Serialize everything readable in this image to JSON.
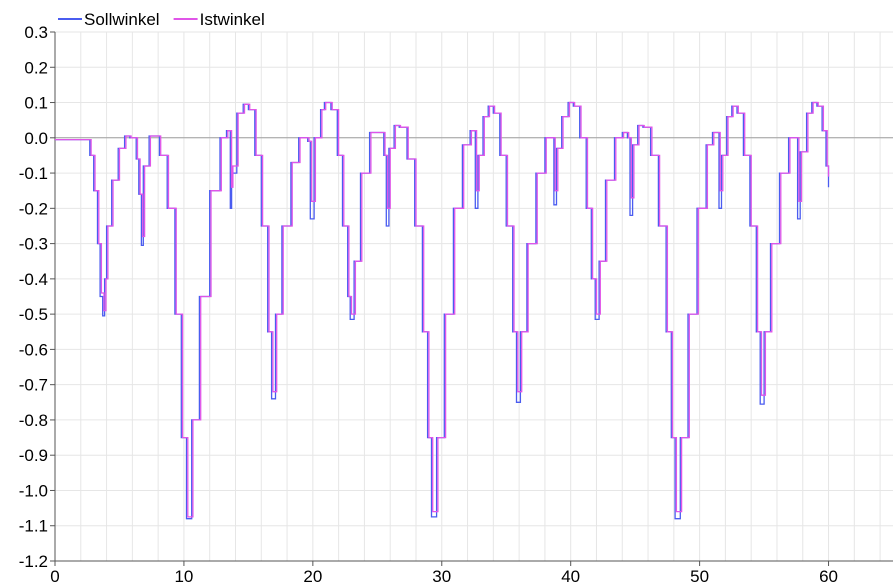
{
  "chart_data": {
    "type": "line",
    "title": "",
    "xlabel": "",
    "ylabel": "",
    "xlim": [
      0,
      65
    ],
    "ylim": [
      -1.2,
      0.3
    ],
    "x_ticks": [
      0,
      10,
      20,
      30,
      40,
      50,
      60
    ],
    "y_ticks": [
      0.3,
      0.2,
      0.1,
      0.0,
      -0.1,
      -0.2,
      -0.3,
      -0.4,
      -0.5,
      -0.6,
      -0.7,
      -0.8,
      -0.9,
      -1.0,
      -1.1,
      -1.2
    ],
    "x_tick_labels": [
      "0",
      "10",
      "20",
      "30",
      "40",
      "50",
      "60"
    ],
    "y_tick_labels": [
      "0.3",
      "0.2",
      "0.1",
      "0.0",
      "-0.1",
      "-0.2",
      "-0.3",
      "-0.4",
      "-0.5",
      "-0.6",
      "-0.7",
      "-0.8",
      "-0.9",
      "-1.0",
      "-1.1",
      "-1.2"
    ],
    "grid": true,
    "legend_position": "top-left",
    "series": [
      {
        "name": "Sollwinkel",
        "color": "#4a5cf0",
        "points": [
          [
            0,
            -0.005
          ],
          [
            2.3,
            -0.005
          ],
          [
            2.7,
            -0.05
          ],
          [
            3.0,
            -0.15
          ],
          [
            3.3,
            -0.3
          ],
          [
            3.5,
            -0.45
          ],
          [
            3.7,
            -0.505
          ],
          [
            3.85,
            -0.4
          ],
          [
            4.0,
            -0.25
          ],
          [
            4.4,
            -0.12
          ],
          [
            4.9,
            -0.03
          ],
          [
            5.4,
            0.005
          ],
          [
            5.8,
            0.0
          ],
          [
            6.3,
            -0.06
          ],
          [
            6.5,
            -0.16
          ],
          [
            6.7,
            -0.305
          ],
          [
            6.85,
            -0.08
          ],
          [
            7.3,
            0.005
          ],
          [
            7.7,
            0.005
          ],
          [
            8.1,
            -0.05
          ],
          [
            8.7,
            -0.2
          ],
          [
            9.3,
            -0.5
          ],
          [
            9.8,
            -0.85
          ],
          [
            10.2,
            -1.08
          ],
          [
            10.6,
            -0.8
          ],
          [
            11.2,
            -0.45
          ],
          [
            12.0,
            -0.15
          ],
          [
            12.8,
            0.0
          ],
          [
            13.3,
            0.02
          ],
          [
            13.5,
            0.02
          ],
          [
            13.6,
            -0.2
          ],
          [
            13.7,
            -0.1
          ],
          [
            14.1,
            0.07
          ],
          [
            14.6,
            0.095
          ],
          [
            15.0,
            0.08
          ],
          [
            15.5,
            -0.05
          ],
          [
            16.0,
            -0.25
          ],
          [
            16.5,
            -0.55
          ],
          [
            16.8,
            -0.74
          ],
          [
            17.1,
            -0.5
          ],
          [
            17.6,
            -0.25
          ],
          [
            18.3,
            -0.07
          ],
          [
            18.9,
            0.0
          ],
          [
            19.6,
            -0.01
          ],
          [
            19.8,
            -0.23
          ],
          [
            20.1,
            0.0
          ],
          [
            20.6,
            0.08
          ],
          [
            20.9,
            0.1
          ],
          [
            21.4,
            0.08
          ],
          [
            21.9,
            -0.05
          ],
          [
            22.3,
            -0.25
          ],
          [
            22.7,
            -0.45
          ],
          [
            22.9,
            -0.515
          ],
          [
            23.2,
            -0.35
          ],
          [
            23.7,
            -0.1
          ],
          [
            24.4,
            0.015
          ],
          [
            25.0,
            0.015
          ],
          [
            25.5,
            -0.05
          ],
          [
            25.7,
            -0.25
          ],
          [
            25.9,
            -0.03
          ],
          [
            26.3,
            0.035
          ],
          [
            26.7,
            0.03
          ],
          [
            27.3,
            -0.06
          ],
          [
            27.9,
            -0.25
          ],
          [
            28.5,
            -0.55
          ],
          [
            28.9,
            -0.85
          ],
          [
            29.2,
            -1.075
          ],
          [
            29.6,
            -0.85
          ],
          [
            30.2,
            -0.5
          ],
          [
            30.9,
            -0.2
          ],
          [
            31.6,
            -0.02
          ],
          [
            32.2,
            0.02
          ],
          [
            32.4,
            0.02
          ],
          [
            32.6,
            -0.2
          ],
          [
            32.8,
            -0.05
          ],
          [
            33.2,
            0.06
          ],
          [
            33.6,
            0.09
          ],
          [
            34.0,
            0.07
          ],
          [
            34.5,
            -0.05
          ],
          [
            35.0,
            -0.25
          ],
          [
            35.5,
            -0.55
          ],
          [
            35.8,
            -0.75
          ],
          [
            36.1,
            -0.55
          ],
          [
            36.6,
            -0.3
          ],
          [
            37.3,
            -0.1
          ],
          [
            38.0,
            0.0
          ],
          [
            38.5,
            0.0
          ],
          [
            38.7,
            -0.19
          ],
          [
            38.9,
            -0.03
          ],
          [
            39.3,
            0.06
          ],
          [
            39.8,
            0.1
          ],
          [
            40.2,
            0.09
          ],
          [
            40.7,
            0.0
          ],
          [
            41.2,
            -0.2
          ],
          [
            41.6,
            -0.4
          ],
          [
            41.9,
            -0.515
          ],
          [
            42.2,
            -0.35
          ],
          [
            42.7,
            -0.12
          ],
          [
            43.4,
            0.0
          ],
          [
            44.0,
            0.015
          ],
          [
            44.4,
            0.0
          ],
          [
            44.6,
            -0.22
          ],
          [
            44.8,
            -0.02
          ],
          [
            45.2,
            0.035
          ],
          [
            45.6,
            0.03
          ],
          [
            46.2,
            -0.05
          ],
          [
            46.8,
            -0.25
          ],
          [
            47.4,
            -0.55
          ],
          [
            47.8,
            -0.85
          ],
          [
            48.1,
            -1.08
          ],
          [
            48.5,
            -0.85
          ],
          [
            49.1,
            -0.5
          ],
          [
            49.8,
            -0.2
          ],
          [
            50.5,
            -0.02
          ],
          [
            51.0,
            0.015
          ],
          [
            51.3,
            0.015
          ],
          [
            51.5,
            -0.2
          ],
          [
            51.7,
            -0.05
          ],
          [
            52.1,
            0.06
          ],
          [
            52.5,
            0.09
          ],
          [
            52.9,
            0.07
          ],
          [
            53.4,
            -0.05
          ],
          [
            53.9,
            -0.25
          ],
          [
            54.4,
            -0.55
          ],
          [
            54.7,
            -0.755
          ],
          [
            55.0,
            -0.55
          ],
          [
            55.5,
            -0.3
          ],
          [
            56.2,
            -0.1
          ],
          [
            56.9,
            0.0
          ],
          [
            57.4,
            0.0
          ],
          [
            57.6,
            -0.23
          ],
          [
            57.8,
            -0.04
          ],
          [
            58.3,
            0.07
          ],
          [
            58.7,
            0.1
          ],
          [
            59.1,
            0.09
          ],
          [
            59.5,
            0.02
          ],
          [
            59.8,
            -0.08
          ],
          [
            60.0,
            -0.14
          ]
        ]
      },
      {
        "name": "Istwinkel",
        "color": "#e055e8",
        "points": [
          [
            0,
            -0.005
          ],
          [
            2.4,
            -0.005
          ],
          [
            2.8,
            -0.05
          ],
          [
            3.1,
            -0.15
          ],
          [
            3.4,
            -0.3
          ],
          [
            3.6,
            -0.44
          ],
          [
            3.8,
            -0.49
          ],
          [
            3.95,
            -0.4
          ],
          [
            4.1,
            -0.25
          ],
          [
            4.5,
            -0.12
          ],
          [
            5.0,
            -0.03
          ],
          [
            5.5,
            0.005
          ],
          [
            5.9,
            0.0
          ],
          [
            6.4,
            -0.06
          ],
          [
            6.6,
            -0.16
          ],
          [
            6.8,
            -0.28
          ],
          [
            6.95,
            -0.08
          ],
          [
            7.4,
            0.005
          ],
          [
            7.8,
            0.005
          ],
          [
            8.2,
            -0.05
          ],
          [
            8.8,
            -0.2
          ],
          [
            9.4,
            -0.5
          ],
          [
            9.9,
            -0.85
          ],
          [
            10.3,
            -1.075
          ],
          [
            10.7,
            -0.8
          ],
          [
            11.3,
            -0.45
          ],
          [
            12.1,
            -0.15
          ],
          [
            12.9,
            0.0
          ],
          [
            13.4,
            0.02
          ],
          [
            13.6,
            0.02
          ],
          [
            13.7,
            -0.14
          ],
          [
            13.8,
            -0.08
          ],
          [
            14.2,
            0.07
          ],
          [
            14.7,
            0.095
          ],
          [
            15.1,
            0.08
          ],
          [
            15.6,
            -0.05
          ],
          [
            16.1,
            -0.25
          ],
          [
            16.6,
            -0.55
          ],
          [
            16.9,
            -0.72
          ],
          [
            17.2,
            -0.5
          ],
          [
            17.7,
            -0.25
          ],
          [
            18.4,
            -0.07
          ],
          [
            19.0,
            0.0
          ],
          [
            19.7,
            -0.01
          ],
          [
            19.9,
            -0.18
          ],
          [
            20.2,
            0.0
          ],
          [
            20.7,
            0.08
          ],
          [
            21.0,
            0.1
          ],
          [
            21.5,
            0.08
          ],
          [
            22.0,
            -0.05
          ],
          [
            22.4,
            -0.25
          ],
          [
            22.8,
            -0.45
          ],
          [
            23.0,
            -0.5
          ],
          [
            23.3,
            -0.35
          ],
          [
            23.8,
            -0.1
          ],
          [
            24.5,
            0.015
          ],
          [
            25.1,
            0.015
          ],
          [
            25.6,
            -0.05
          ],
          [
            25.8,
            -0.2
          ],
          [
            26.0,
            -0.03
          ],
          [
            26.4,
            0.035
          ],
          [
            26.8,
            0.03
          ],
          [
            27.4,
            -0.06
          ],
          [
            28.0,
            -0.25
          ],
          [
            28.6,
            -0.55
          ],
          [
            29.0,
            -0.85
          ],
          [
            29.3,
            -1.06
          ],
          [
            29.7,
            -0.85
          ],
          [
            30.3,
            -0.5
          ],
          [
            31.0,
            -0.2
          ],
          [
            31.7,
            -0.02
          ],
          [
            32.3,
            0.02
          ],
          [
            32.5,
            0.02
          ],
          [
            32.7,
            -0.15
          ],
          [
            32.9,
            -0.05
          ],
          [
            33.3,
            0.06
          ],
          [
            33.7,
            0.09
          ],
          [
            34.1,
            0.07
          ],
          [
            34.6,
            -0.05
          ],
          [
            35.1,
            -0.25
          ],
          [
            35.6,
            -0.55
          ],
          [
            35.9,
            -0.72
          ],
          [
            36.2,
            -0.55
          ],
          [
            36.7,
            -0.3
          ],
          [
            37.4,
            -0.1
          ],
          [
            38.1,
            0.0
          ],
          [
            38.6,
            0.0
          ],
          [
            38.8,
            -0.15
          ],
          [
            39.0,
            -0.03
          ],
          [
            39.4,
            0.06
          ],
          [
            39.9,
            0.1
          ],
          [
            40.3,
            0.09
          ],
          [
            40.8,
            0.0
          ],
          [
            41.3,
            -0.2
          ],
          [
            41.7,
            -0.4
          ],
          [
            42.0,
            -0.5
          ],
          [
            42.3,
            -0.35
          ],
          [
            42.8,
            -0.12
          ],
          [
            43.5,
            0.0
          ],
          [
            44.1,
            0.015
          ],
          [
            44.5,
            0.0
          ],
          [
            44.7,
            -0.17
          ],
          [
            44.9,
            -0.02
          ],
          [
            45.3,
            0.035
          ],
          [
            45.7,
            0.03
          ],
          [
            46.3,
            -0.05
          ],
          [
            46.9,
            -0.25
          ],
          [
            47.5,
            -0.55
          ],
          [
            47.9,
            -0.85
          ],
          [
            48.2,
            -1.06
          ],
          [
            48.6,
            -0.85
          ],
          [
            49.2,
            -0.5
          ],
          [
            49.9,
            -0.2
          ],
          [
            50.6,
            -0.02
          ],
          [
            51.1,
            0.015
          ],
          [
            51.4,
            0.015
          ],
          [
            51.6,
            -0.15
          ],
          [
            51.8,
            -0.05
          ],
          [
            52.2,
            0.06
          ],
          [
            52.6,
            0.09
          ],
          [
            53.0,
            0.07
          ],
          [
            53.5,
            -0.05
          ],
          [
            54.0,
            -0.25
          ],
          [
            54.5,
            -0.55
          ],
          [
            54.8,
            -0.73
          ],
          [
            55.1,
            -0.55
          ],
          [
            55.6,
            -0.3
          ],
          [
            56.3,
            -0.1
          ],
          [
            57.0,
            0.0
          ],
          [
            57.5,
            0.0
          ],
          [
            57.7,
            -0.18
          ],
          [
            57.9,
            -0.04
          ],
          [
            58.4,
            0.07
          ],
          [
            58.8,
            0.1
          ],
          [
            59.2,
            0.09
          ],
          [
            59.6,
            0.02
          ],
          [
            59.9,
            -0.08
          ],
          [
            60.0,
            -0.11
          ]
        ]
      }
    ]
  }
}
